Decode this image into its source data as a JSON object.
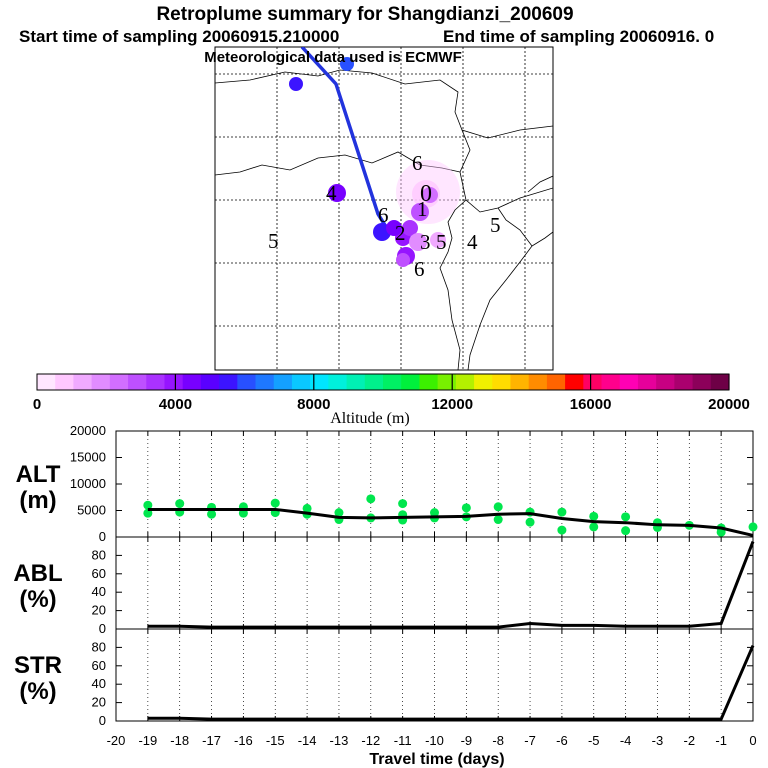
{
  "titles": {
    "line1": "Retroplume summary for Shangdianzi_200609",
    "line2_start": "Start time of sampling 20060915.210000",
    "line2_end": "End time of sampling 20060916.     0",
    "line3": "Meteorological data used is ECMWF"
  },
  "map": {
    "day_labels": [
      {
        "text": "5",
        "pos": "far-west"
      },
      {
        "text": "6",
        "pos": "north-of-source"
      },
      {
        "text": "0",
        "pos": "source"
      },
      {
        "text": "1",
        "pos": "near-source"
      },
      {
        "text": "2",
        "pos": "cluster"
      },
      {
        "text": "3",
        "pos": "cluster"
      },
      {
        "text": "4",
        "pos": "east"
      },
      {
        "text": "5",
        "pos": "far-east"
      },
      {
        "text": "6",
        "pos": "south"
      },
      {
        "text": "4",
        "pos": "west-cluster"
      },
      {
        "text": "5",
        "pos": "cluster-east"
      },
      {
        "text": "6",
        "pos": "west-cluster-top"
      }
    ]
  },
  "colorbar": {
    "label": "Altitude (m)",
    "tick_labels": [
      "0",
      "4000",
      "8000",
      "12000",
      "16000",
      "20000"
    ],
    "range": [
      0,
      20000
    ],
    "colors": [
      "#ffe6ff",
      "#ffc8ff",
      "#f0aaff",
      "#e18cff",
      "#d26eff",
      "#be50ff",
      "#aa32ff",
      "#9614ff",
      "#7800ff",
      "#5a00ff",
      "#3c14ff",
      "#2850ff",
      "#1e78ff",
      "#14a0ff",
      "#0ac8ff",
      "#00e6ff",
      "#00f0dc",
      "#00f0b4",
      "#00f08c",
      "#00f064",
      "#00f03c",
      "#3cf000",
      "#78f000",
      "#b4f000",
      "#f0f000",
      "#ffdc00",
      "#ffb400",
      "#ff8c00",
      "#ff6400",
      "#ff0000",
      "#ff0064",
      "#ff008c",
      "#ff00b4",
      "#e6009b",
      "#c80082",
      "#aa006e",
      "#8c005a",
      "#6e0046"
    ]
  },
  "chart_data": {
    "type": "line",
    "xlabel": "Travel time (days)",
    "x_ticks": [
      "-20",
      "-19",
      "-18",
      "-17",
      "-16",
      "-15",
      "-14",
      "-13",
      "-12",
      "-11",
      "-10",
      "-9",
      "-8",
      "-7",
      "-6",
      "-5",
      "-4",
      "-3",
      "-2",
      "-1",
      "0"
    ],
    "x_range": [
      -20,
      0
    ],
    "x": [
      -19,
      -18,
      -17,
      -16,
      -15,
      -14,
      -13,
      -12,
      -11,
      -10,
      -9,
      -8,
      -7,
      -6,
      -5,
      -4,
      -3,
      -2,
      -1,
      0
    ],
    "panels": [
      {
        "label": "ALT",
        "unit": "(m)",
        "y_ticks": [
          "0",
          "5000",
          "10000",
          "15000",
          "20000"
        ],
        "ylim": [
          0,
          20000
        ],
        "series": [
          {
            "name": "median altitude",
            "values": [
              5200,
              5200,
              5200,
              5200,
              5200,
              4500,
              3700,
              3600,
              3700,
              3800,
              3900,
              4300,
              4400,
              3500,
              2900,
              2700,
              2300,
              2200,
              1700,
              300
            ]
          }
        ],
        "scatter": [
          {
            "x": -19,
            "y": 6000
          },
          {
            "x": -19,
            "y": 4500
          },
          {
            "x": -18,
            "y": 6300
          },
          {
            "x": -18,
            "y": 4700
          },
          {
            "x": -17,
            "y": 5600
          },
          {
            "x": -17,
            "y": 4300
          },
          {
            "x": -16,
            "y": 5700
          },
          {
            "x": -16,
            "y": 4500
          },
          {
            "x": -15,
            "y": 6400
          },
          {
            "x": -15,
            "y": 4600
          },
          {
            "x": -14,
            "y": 5400
          },
          {
            "x": -14,
            "y": 4300
          },
          {
            "x": -13,
            "y": 4600
          },
          {
            "x": -13,
            "y": 3300
          },
          {
            "x": -12,
            "y": 7200
          },
          {
            "x": -12,
            "y": 3600
          },
          {
            "x": -11,
            "y": 6300
          },
          {
            "x": -11,
            "y": 4200
          },
          {
            "x": -11,
            "y": 3200
          },
          {
            "x": -10,
            "y": 4600
          },
          {
            "x": -10,
            "y": 3600
          },
          {
            "x": -9,
            "y": 5500
          },
          {
            "x": -9,
            "y": 3800
          },
          {
            "x": -8,
            "y": 5700
          },
          {
            "x": -8,
            "y": 3300
          },
          {
            "x": -7,
            "y": 4700
          },
          {
            "x": -7,
            "y": 2800
          },
          {
            "x": -6,
            "y": 4700
          },
          {
            "x": -6,
            "y": 1300
          },
          {
            "x": -5,
            "y": 3900
          },
          {
            "x": -5,
            "y": 1900
          },
          {
            "x": -4,
            "y": 3800
          },
          {
            "x": -4,
            "y": 1200
          },
          {
            "x": -3,
            "y": 2700
          },
          {
            "x": -3,
            "y": 1800
          },
          {
            "x": -2,
            "y": 2200
          },
          {
            "x": -1,
            "y": 1700
          },
          {
            "x": -1,
            "y": 900
          },
          {
            "x": 0,
            "y": 1900
          }
        ]
      },
      {
        "label": "ABL",
        "unit": "(%)",
        "y_ticks": [
          "0",
          "20",
          "40",
          "60",
          "80"
        ],
        "ylim": [
          0,
          100
        ],
        "series": [
          {
            "name": "ABL fraction",
            "values": [
              3,
              3,
              2,
              2,
              2,
              2,
              2,
              2,
              2,
              2,
              2,
              2,
              6,
              4,
              4,
              3,
              3,
              3,
              6,
              95
            ]
          }
        ]
      },
      {
        "label": "STR",
        "unit": "(%)",
        "y_ticks": [
          "0",
          "20",
          "40",
          "60",
          "80"
        ],
        "ylim": [
          0,
          100
        ],
        "series": [
          {
            "name": "stratospheric fraction",
            "values": [
              3,
              3,
              2,
              2,
              2,
              2,
              2,
              2,
              2,
              2,
              2,
              2,
              2,
              2,
              2,
              2,
              2,
              2,
              2,
              82
            ]
          }
        ]
      }
    ]
  }
}
